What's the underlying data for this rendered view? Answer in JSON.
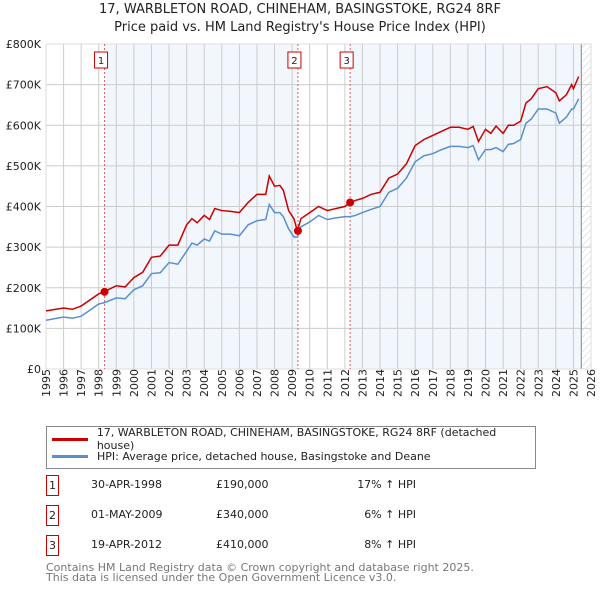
{
  "title": "17, WARBLETON ROAD, CHINEHAM, BASINGSTOKE, RG24 8RF",
  "subtitle": "Price paid vs. HM Land Registry's House Price Index (HPI)",
  "chart_data": {
    "type": "line",
    "title": "17, WARBLETON ROAD, CHINEHAM, BASINGSTOKE, RG24 8RF",
    "subtitle": "Price paid vs. HM Land Registry's House Price Index (HPI)",
    "xlim": [
      1995,
      2026
    ],
    "ylim": [
      0,
      800000
    ],
    "x_ticks": [
      "1995",
      "1996",
      "1997",
      "1998",
      "1999",
      "2000",
      "2001",
      "2002",
      "2003",
      "2004",
      "2005",
      "2006",
      "2007",
      "2008",
      "2009",
      "2010",
      "2011",
      "2012",
      "2013",
      "2014",
      "2015",
      "2016",
      "2017",
      "2018",
      "2019",
      "2020",
      "2021",
      "2022",
      "2023",
      "2024",
      "2025",
      "2026"
    ],
    "y_ticks": [
      {
        "v": 0,
        "label": "£0"
      },
      {
        "v": 100000,
        "label": "£100K"
      },
      {
        "v": 200000,
        "label": "£200K"
      },
      {
        "v": 300000,
        "label": "£300K"
      },
      {
        "v": 400000,
        "label": "£400K"
      },
      {
        "v": 500000,
        "label": "£500K"
      },
      {
        "v": 600000,
        "label": "£600K"
      },
      {
        "v": 700000,
        "label": "£700K"
      },
      {
        "v": 800000,
        "label": "£800K"
      }
    ],
    "grid": true,
    "legend_placement": "below",
    "series": [
      {
        "name": "17, WARBLETON ROAD, CHINEHAM, BASINGSTOKE, RG24 8RF (detached house)",
        "color": "#cc0000",
        "x": [
          1995,
          1996,
          1996.5,
          1997,
          1998,
          1998.3,
          1999,
          1999.5,
          2000,
          2000.5,
          2001,
          2001.5,
          2002,
          2002.5,
          2003,
          2003.3,
          2003.6,
          2004,
          2004.3,
          2004.6,
          2005,
          2005.5,
          2006,
          2006.5,
          2007,
          2007.5,
          2007.7,
          2008,
          2008.3,
          2008.5,
          2008.8,
          2009.1,
          2009.3,
          2009.5,
          2010,
          2010.5,
          2011,
          2011.5,
          2012,
          2012.3,
          2012.6,
          2013,
          2013.5,
          2014,
          2014.5,
          2015,
          2015.5,
          2016,
          2016.5,
          2017,
          2017.5,
          2018,
          2018.5,
          2019,
          2019.3,
          2019.6,
          2020,
          2020.3,
          2020.6,
          2021,
          2021.3,
          2021.6,
          2022,
          2022.3,
          2022.6,
          2023,
          2023.5,
          2024,
          2024.2,
          2024.6,
          2024.9,
          2025,
          2025.3
        ],
        "y": [
          143000,
          150000,
          147000,
          155000,
          185000,
          190000,
          205000,
          202000,
          225000,
          238000,
          275000,
          278000,
          305000,
          305000,
          355000,
          370000,
          360000,
          378000,
          368000,
          395000,
          390000,
          388000,
          385000,
          410000,
          430000,
          430000,
          475000,
          450000,
          452000,
          440000,
          390000,
          370000,
          340000,
          370000,
          385000,
          400000,
          390000,
          395000,
          400000,
          410000,
          415000,
          420000,
          430000,
          435000,
          470000,
          480000,
          505000,
          550000,
          565000,
          575000,
          585000,
          595000,
          595000,
          590000,
          597000,
          560000,
          590000,
          580000,
          598000,
          580000,
          600000,
          600000,
          610000,
          655000,
          665000,
          690000,
          695000,
          680000,
          660000,
          675000,
          700000,
          690000,
          720000
        ]
      },
      {
        "name": "HPI: Average price, detached house, Basingstoke and Deane",
        "color": "#5b8fd0",
        "x": [
          1995,
          1996,
          1996.5,
          1997,
          1998,
          1998.3,
          1999,
          1999.5,
          2000,
          2000.5,
          2001,
          2001.5,
          2002,
          2002.5,
          2003,
          2003.3,
          2003.6,
          2004,
          2004.3,
          2004.6,
          2005,
          2005.5,
          2006,
          2006.5,
          2007,
          2007.5,
          2007.7,
          2008,
          2008.3,
          2008.5,
          2008.8,
          2009.1,
          2009.3,
          2009.5,
          2010,
          2010.5,
          2011,
          2011.5,
          2012,
          2012.3,
          2012.6,
          2013,
          2013.5,
          2014,
          2014.5,
          2015,
          2015.5,
          2016,
          2016.5,
          2017,
          2017.5,
          2018,
          2018.5,
          2019,
          2019.3,
          2019.6,
          2020,
          2020.3,
          2020.6,
          2021,
          2021.3,
          2021.6,
          2022,
          2022.3,
          2022.6,
          2023,
          2023.5,
          2024,
          2024.2,
          2024.6,
          2024.9,
          2025,
          2025.3
        ],
        "y": [
          120000,
          128000,
          125000,
          130000,
          160000,
          163000,
          175000,
          173000,
          195000,
          205000,
          235000,
          237000,
          262000,
          258000,
          290000,
          310000,
          305000,
          320000,
          315000,
          340000,
          332000,
          332000,
          328000,
          355000,
          365000,
          368000,
          405000,
          385000,
          385000,
          375000,
          345000,
          325000,
          325000,
          350000,
          362000,
          378000,
          368000,
          372000,
          375000,
          375000,
          378000,
          385000,
          393000,
          400000,
          435000,
          445000,
          470000,
          510000,
          525000,
          530000,
          540000,
          548000,
          548000,
          545000,
          550000,
          515000,
          540000,
          540000,
          545000,
          535000,
          553000,
          555000,
          565000,
          605000,
          615000,
          640000,
          640000,
          630000,
          605000,
          620000,
          640000,
          640000,
          665000
        ]
      }
    ],
    "sales": [
      {
        "num": "1",
        "x": 1998.33,
        "y": 190000,
        "date": "30-APR-1998",
        "price": "£190,000",
        "hpi": "17% ↑ HPI"
      },
      {
        "num": "2",
        "x": 2009.33,
        "y": 340000,
        "date": "01-MAY-2009",
        "price": "£340,000",
        "hpi": "6% ↑ HPI"
      },
      {
        "num": "3",
        "x": 2012.3,
        "y": 410000,
        "date": "19-APR-2012",
        "price": "£410,000",
        "hpi": "8% ↑ HPI"
      }
    ],
    "forecast_start": 2025.45
  },
  "footer": [
    "Contains HM Land Registry data © Crown copyright and database right 2025.",
    "This data is licensed under the Open Government Licence v3.0."
  ]
}
